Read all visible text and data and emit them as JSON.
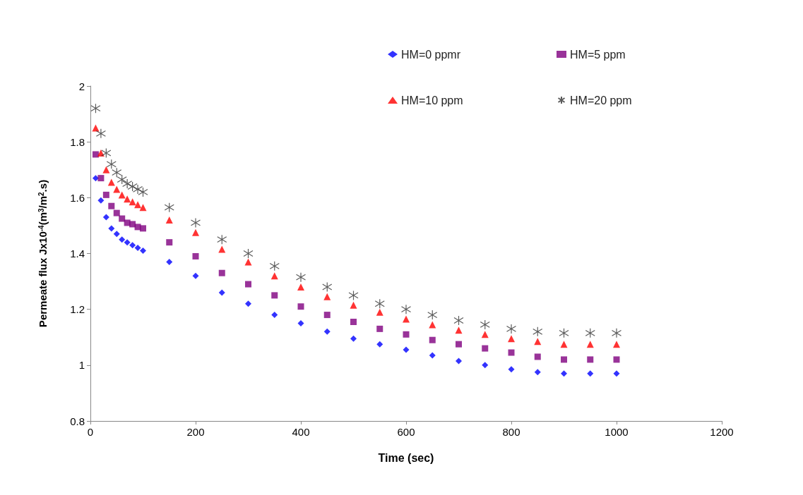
{
  "chart_data": {
    "type": "scatter",
    "xlabel": "Time (sec)",
    "ylabel": "Permeate flux Jx10$^{-4}$(m$^{3}$/m$^{2}$.s)",
    "x": [
      10,
      20,
      30,
      40,
      50,
      60,
      70,
      80,
      90,
      100,
      150,
      200,
      250,
      300,
      350,
      400,
      450,
      500,
      550,
      600,
      650,
      700,
      750,
      800,
      850,
      900,
      950,
      1000
    ],
    "series": [
      {
        "name": "HM=0 ppmr",
        "color": "#0000ff",
        "marker": "diamond",
        "values": [
          1.67,
          1.59,
          1.53,
          1.49,
          1.47,
          1.45,
          1.44,
          1.43,
          1.42,
          1.41,
          1.37,
          1.32,
          1.26,
          1.22,
          1.18,
          1.15,
          1.12,
          1.095,
          1.075,
          1.055,
          1.035,
          1.015,
          1.0,
          0.985,
          0.975,
          0.97,
          0.97,
          0.97
        ]
      },
      {
        "name": "HM=5 ppm",
        "color": "#7f007f",
        "marker": "square",
        "values": [
          1.755,
          1.67,
          1.61,
          1.57,
          1.545,
          1.525,
          1.51,
          1.505,
          1.495,
          1.49,
          1.44,
          1.39,
          1.33,
          1.29,
          1.25,
          1.21,
          1.18,
          1.155,
          1.13,
          1.11,
          1.09,
          1.075,
          1.06,
          1.045,
          1.03,
          1.02,
          1.02,
          1.02
        ]
      },
      {
        "name": "HM=10 ppm",
        "color": "#ff0000",
        "marker": "triangle",
        "values": [
          1.85,
          1.76,
          1.7,
          1.655,
          1.63,
          1.61,
          1.595,
          1.585,
          1.575,
          1.565,
          1.52,
          1.475,
          1.415,
          1.37,
          1.32,
          1.28,
          1.245,
          1.215,
          1.19,
          1.165,
          1.145,
          1.125,
          1.11,
          1.095,
          1.085,
          1.075,
          1.075,
          1.075
        ]
      },
      {
        "name": "HM=20 ppm",
        "color": "#333333",
        "marker": "cross",
        "values": [
          1.92,
          1.83,
          1.76,
          1.72,
          1.69,
          1.665,
          1.65,
          1.64,
          1.63,
          1.62,
          1.565,
          1.51,
          1.45,
          1.4,
          1.355,
          1.315,
          1.28,
          1.25,
          1.22,
          1.2,
          1.18,
          1.16,
          1.145,
          1.13,
          1.12,
          1.115,
          1.115,
          1.115
        ]
      }
    ],
    "xlim": [
      0,
      1200
    ],
    "xticks": [
      0,
      200,
      400,
      600,
      800,
      1000,
      1200
    ],
    "ylim": [
      0.8,
      2
    ],
    "yticks": [
      0.8,
      1,
      1.2,
      1.4,
      1.6,
      1.8,
      2
    ],
    "grid": false,
    "legend": "top right"
  }
}
